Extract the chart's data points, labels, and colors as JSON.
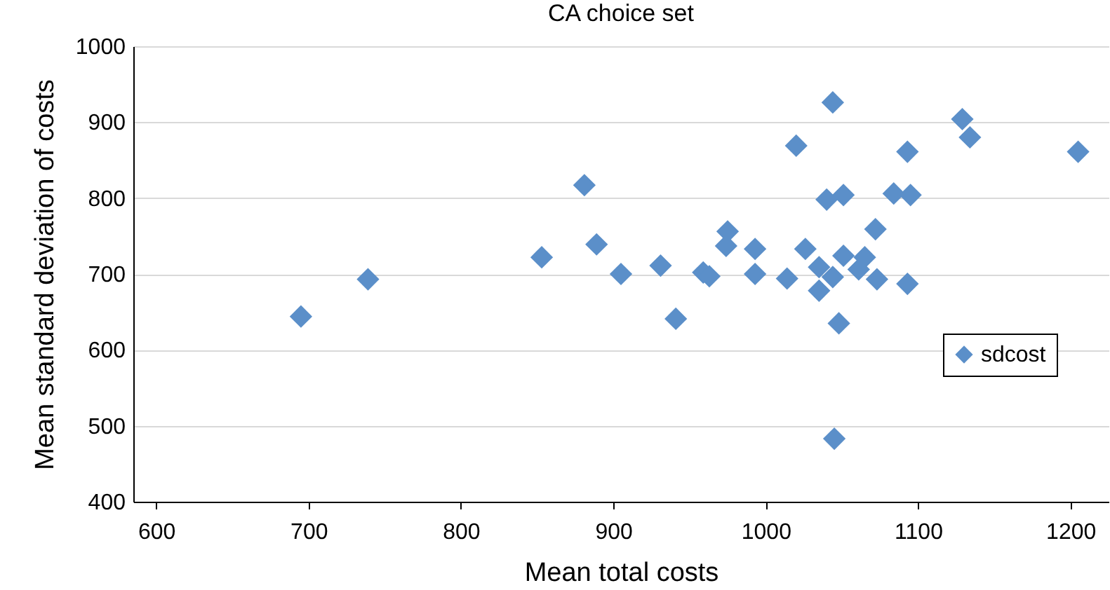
{
  "chart_data": {
    "type": "scatter",
    "title": "CA choice set",
    "xlabel": "Mean total costs",
    "ylabel": "Mean standard deviation of costs",
    "x": [
      695,
      739,
      853,
      881,
      889,
      905,
      931,
      941,
      959,
      963,
      975,
      974,
      993,
      993,
      1014,
      1020,
      1026,
      1035,
      1044,
      1035,
      1040,
      1051,
      1044,
      1051,
      1061,
      1065,
      1073,
      1072,
      1048,
      1045,
      1093,
      1084,
      1095,
      1093,
      1129,
      1134,
      1205
    ],
    "series": [
      {
        "name": "sdcost",
        "color": "#5b8fc9",
        "values": [
          644,
          693,
          722,
          817,
          739,
          700,
          711,
          641,
          702,
          697,
          756,
          737,
          733,
          700,
          694,
          869,
          733,
          709,
          696,
          678,
          798,
          804,
          926,
          724,
          706,
          722,
          693,
          759,
          635,
          483,
          687,
          806,
          804,
          861,
          904,
          880,
          861
        ]
      }
    ],
    "xlim": [
      585,
      1225
    ],
    "xticks": [
      600,
      700,
      800,
      900,
      1000,
      1100,
      1200
    ],
    "ylim": [
      400,
      1000
    ],
    "yticks": [
      400,
      500,
      600,
      700,
      800,
      900,
      1000
    ],
    "grid": "y",
    "legend": "right",
    "marker": "diamond"
  }
}
